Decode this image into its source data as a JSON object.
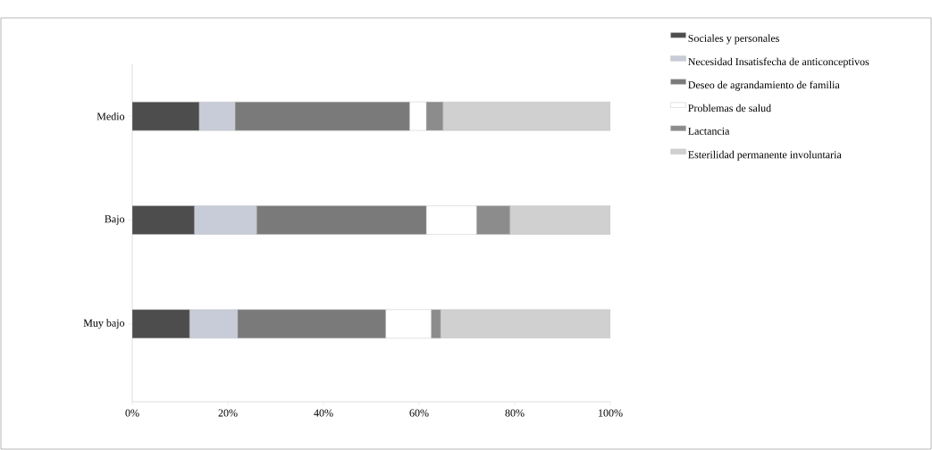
{
  "chart_data": {
    "type": "bar",
    "orientation": "horizontal",
    "stacked": true,
    "categories": [
      "Medio",
      "Bajo",
      "Muy bajo"
    ],
    "series": [
      {
        "name": "Sociales y personales",
        "color": "#4d4d4d",
        "values": [
          14,
          13,
          12
        ]
      },
      {
        "name": "Necesidad Insatisfecha de anticonceptivos",
        "color": "#c8ccd8",
        "values": [
          7.5,
          13,
          10
        ]
      },
      {
        "name": "Deseo de agrandamiento de familia",
        "color": "#7a7a7a",
        "values": [
          36.5,
          35.5,
          31
        ]
      },
      {
        "name": "Problemas de salud",
        "color": "#ffffff",
        "values": [
          3.5,
          10.5,
          9.5
        ]
      },
      {
        "name": "Lactancia",
        "color": "#8c8c8c",
        "values": [
          3.5,
          7,
          2
        ]
      },
      {
        "name": "Esterilidad permanente involuntaria",
        "color": "#d0d0d0",
        "values": [
          35,
          21,
          35.5
        ]
      }
    ],
    "xlim": [
      0,
      100
    ],
    "xticks": [
      {
        "value": 0,
        "label": "0%"
      },
      {
        "value": 20,
        "label": "20%"
      },
      {
        "value": 40,
        "label": "40%"
      },
      {
        "value": 60,
        "label": "60%"
      },
      {
        "value": 80,
        "label": "80%"
      },
      {
        "value": 100,
        "label": "100%"
      }
    ],
    "legend": "right"
  }
}
